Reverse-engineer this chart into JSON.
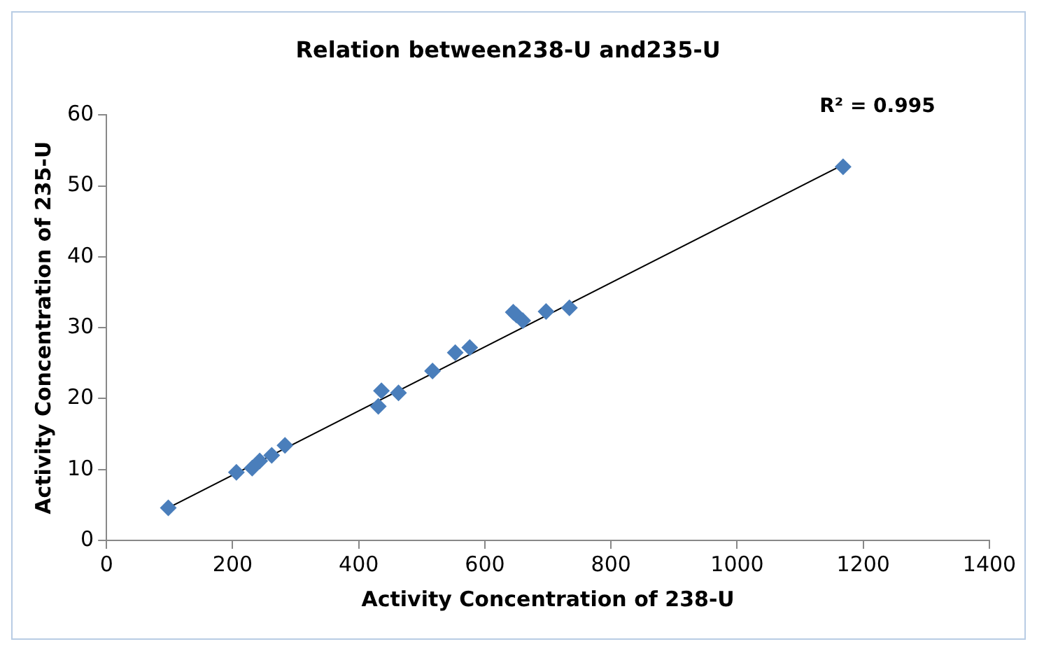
{
  "chart_data": {
    "type": "scatter",
    "title": "Relation between238-U and235-U",
    "xlabel": "Activity Concentration of 238-U",
    "ylabel": "Activity Concentration of 235-U",
    "xlim": [
      0,
      1400
    ],
    "xticks": [
      0,
      200,
      400,
      600,
      800,
      1000,
      1200,
      1400
    ],
    "ylim": [
      0,
      60
    ],
    "yticks": [
      0,
      10,
      20,
      30,
      40,
      50,
      60
    ],
    "grid": false,
    "legend": false,
    "annotations": [
      "R² = 0.995"
    ],
    "series": [
      {
        "marker": "diamond",
        "color": "#4a7ebb",
        "x": [
          98,
          206,
          231,
          243,
          262,
          283,
          431,
          436,
          463,
          517,
          553,
          576,
          645,
          650,
          660,
          697,
          734,
          1168
        ],
        "values": [
          4.6,
          9.6,
          10.2,
          11.2,
          12.0,
          13.4,
          18.9,
          21.1,
          20.8,
          23.9,
          26.5,
          27.2,
          32.2,
          31.8,
          31.0,
          32.3,
          32.8,
          52.7
        ]
      },
      {
        "type": "line",
        "marker": "none",
        "color": "#000000",
        "x": [
          98,
          1168
        ],
        "values": [
          4.6,
          53.0
        ]
      }
    ]
  }
}
